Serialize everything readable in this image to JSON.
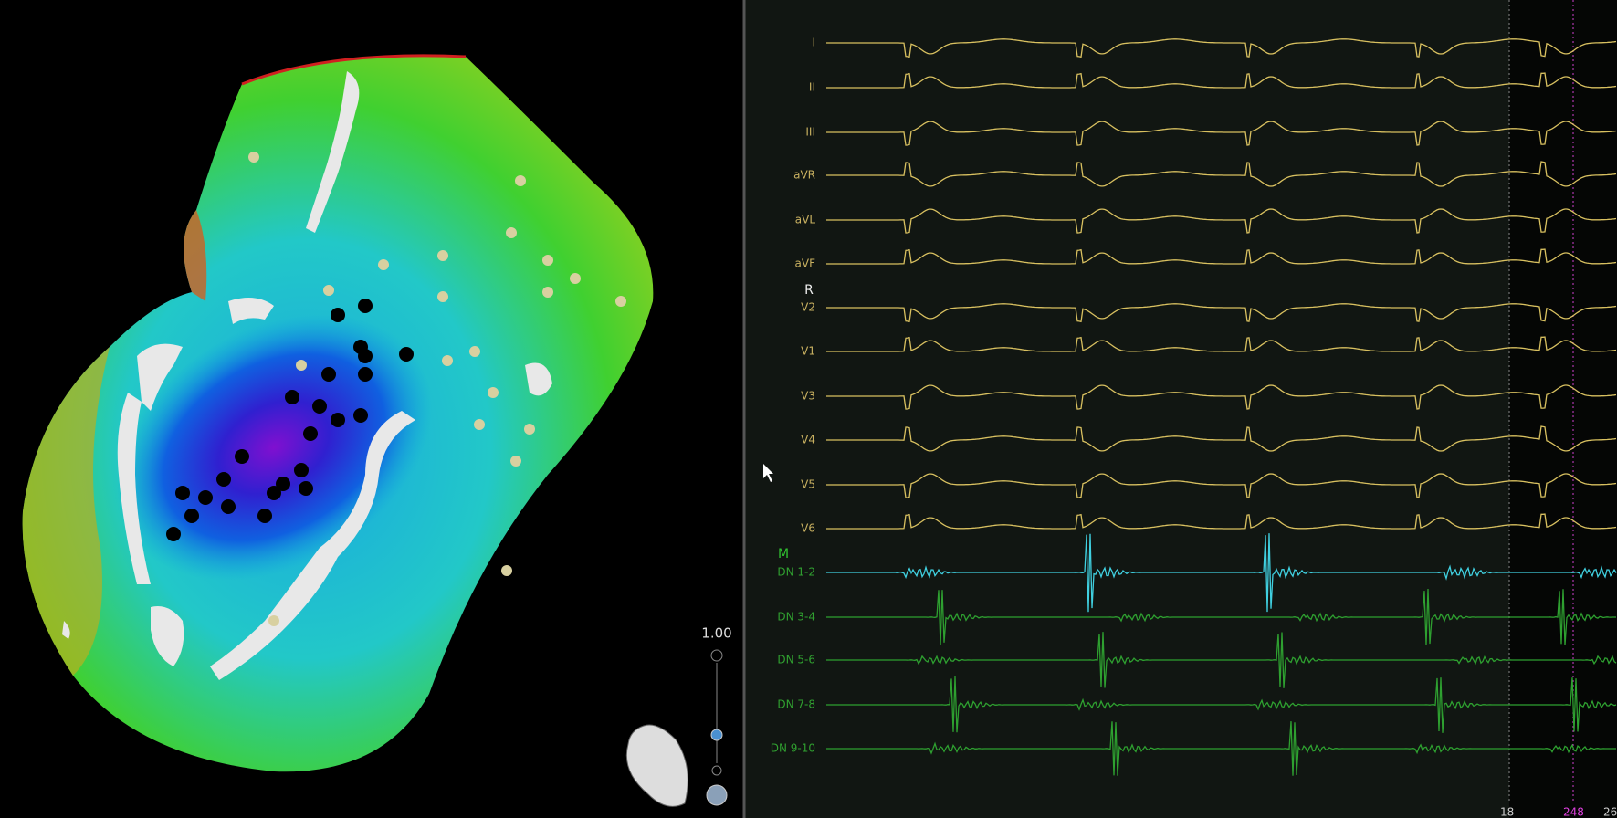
{
  "map_view": {
    "zoom_label": "1.00"
  },
  "ecg": {
    "surface_leads": [
      "I",
      "II",
      "III",
      "aVR",
      "aVL",
      "aVF"
    ],
    "marker_r": "R",
    "precordial_leads": [
      "V2",
      "V1",
      "V3",
      "V4",
      "V5",
      "V6"
    ],
    "marker_m": "M",
    "catheter_leads": [
      "DN 1-2",
      "DN 3-4",
      "DN 5-6",
      "DN 7-8",
      "DN 9-10"
    ],
    "time_labels": [
      "18",
      "248",
      "26"
    ]
  }
}
